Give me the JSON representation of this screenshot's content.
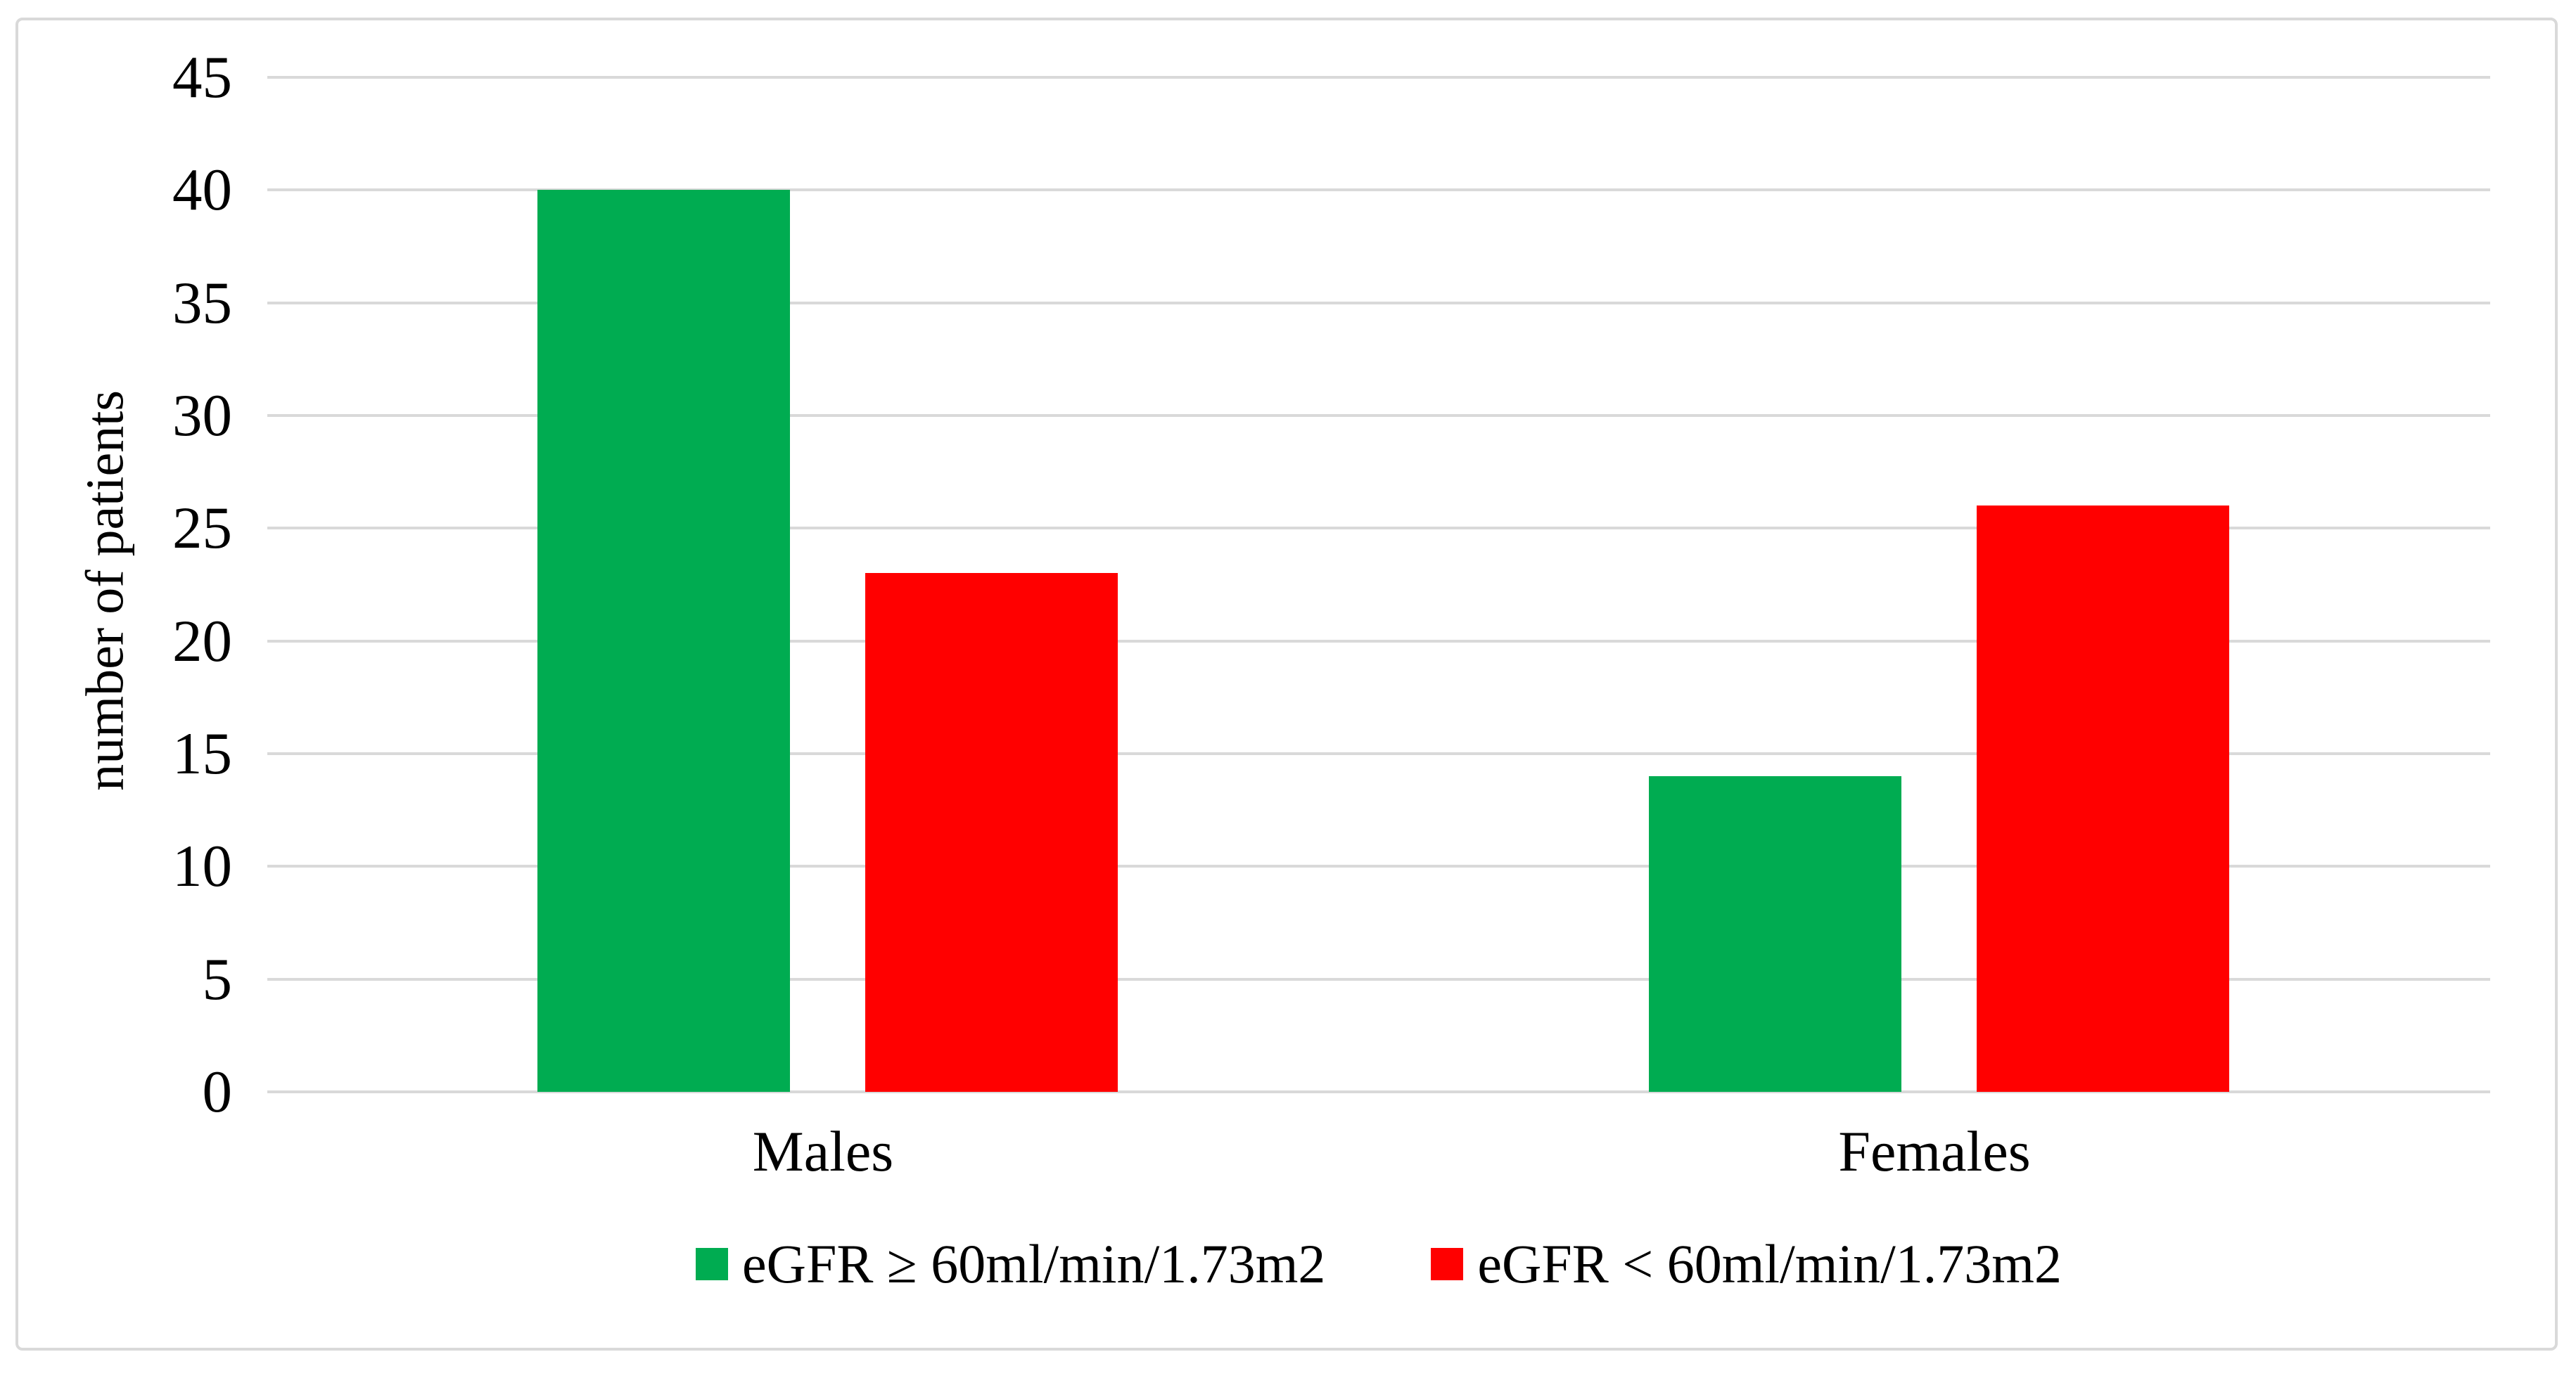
{
  "figure": {
    "background": "#ffffff",
    "border_color": "#d9d9d9"
  },
  "chart_data": {
    "type": "bar",
    "title": "",
    "categories": [
      "Males",
      "Females"
    ],
    "series": [
      {
        "name": "eGFR ≥ 60ml/min/1.73m2",
        "color": "#00ac51",
        "values": [
          40,
          14
        ]
      },
      {
        "name": "eGFR < 60ml/min/1.73m2",
        "color": "#ff0000",
        "values": [
          23,
          26
        ]
      }
    ],
    "xlabel": "",
    "ylabel": "number of patients",
    "ylim": [
      0,
      45
    ],
    "ytick_step": 5,
    "yticks": [
      0,
      5,
      10,
      15,
      20,
      25,
      30,
      35,
      40,
      45
    ],
    "grid": "horizontal",
    "gridline_color": "#d9d9d9",
    "legend_position": "bottom"
  }
}
